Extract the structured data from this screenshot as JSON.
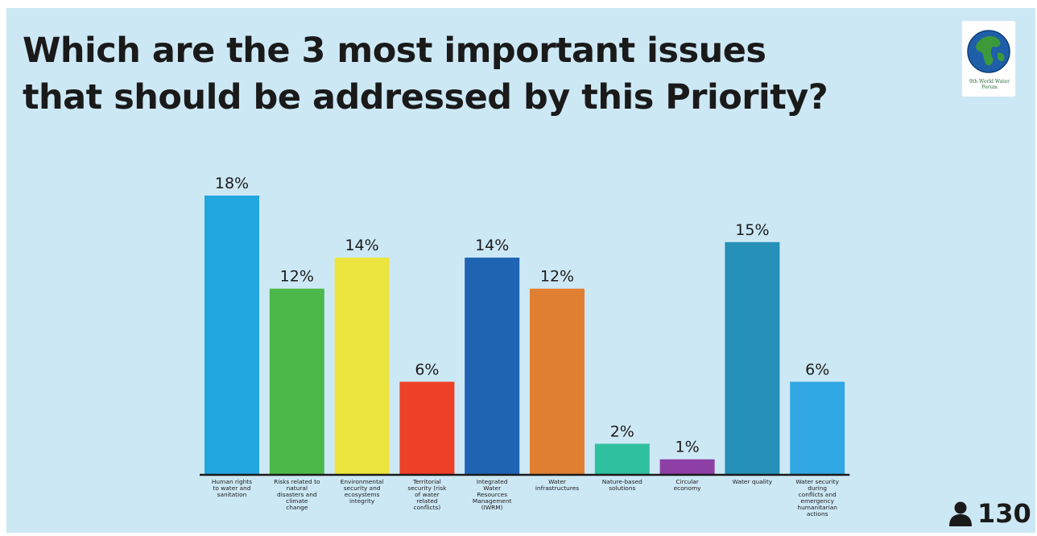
{
  "slide": {
    "title_line1": "Which are the 3 most important issues",
    "title_line2": "that should be addressed by this Priority?",
    "logo_text": "9th World Water Forum",
    "participants_icon": "person-icon",
    "participant_count": "130"
  },
  "chart_data": {
    "type": "bar",
    "title": "Which are the 3 most important issues that should be addressed by this Priority?",
    "categories": [
      [
        "Human rights",
        "to water and",
        "sanitation"
      ],
      [
        "Risks related to",
        "natural",
        "disasters and",
        "climate",
        "change"
      ],
      [
        "Environmental",
        "security and",
        "ecosystems",
        "integrity"
      ],
      [
        "Territorial",
        "security (risk",
        "of water",
        "related",
        "conflicts)"
      ],
      [
        "Integrated",
        "Water",
        "Resources",
        "Management",
        "(IWRM)"
      ],
      [
        "Water",
        "infrastructures"
      ],
      [
        "Nature-based",
        "solutions"
      ],
      [
        "Circular",
        "economy"
      ],
      [
        "Water quality"
      ],
      [
        "Water security",
        "during",
        "conflicts and",
        "emergency",
        "humanitarian",
        "actions"
      ]
    ],
    "values": [
      18,
      12,
      14,
      6,
      14,
      12,
      2,
      1,
      15,
      6
    ],
    "value_labels": [
      "18%",
      "12%",
      "14%",
      "6%",
      "14%",
      "12%",
      "2%",
      "1%",
      "15%",
      "6%"
    ],
    "colors": [
      "#22a6e0",
      "#4cb84a",
      "#ede53f",
      "#ee4028",
      "#1f64b3",
      "#e07f32",
      "#2ebf9e",
      "#8d3fa5",
      "#2590b8",
      "#31a7e3"
    ],
    "ylim": [
      0,
      18
    ],
    "xlabel": "",
    "ylabel": "",
    "grid": false,
    "legend": "none"
  }
}
